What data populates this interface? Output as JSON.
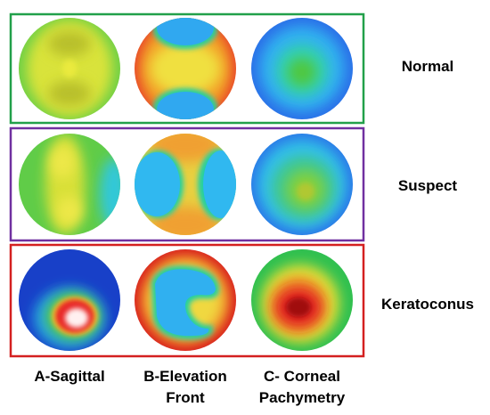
{
  "rows": [
    {
      "label": "Normal"
    },
    {
      "label": "Suspect"
    },
    {
      "label": "Keratoconus"
    }
  ],
  "columns": [
    {
      "lines": [
        "A-Sagittal"
      ]
    },
    {
      "lines": [
        "B-Elevation",
        "Front"
      ]
    },
    {
      "lines": [
        "C- Corneal",
        "Pachymetry"
      ]
    }
  ]
}
